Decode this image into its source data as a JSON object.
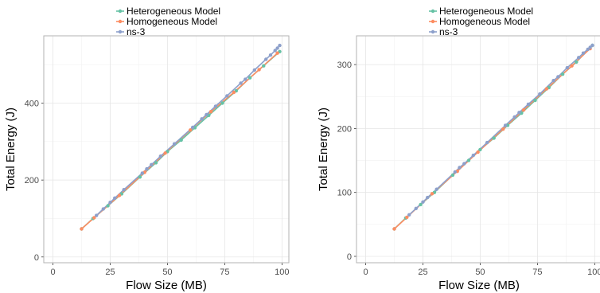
{
  "legend_entries": [
    {
      "name": "Heterogeneous Model",
      "color": "#66c2a5"
    },
    {
      "name": "Homogeneous Model",
      "color": "#fc8d62"
    },
    {
      "name": "ns-3",
      "color": "#8da0cb"
    }
  ],
  "chart_data": [
    {
      "type": "line",
      "title": "",
      "xlabel": "Flow Size (MB)",
      "ylabel": "Total Energy (J)",
      "xlim": [
        -4,
        103
      ],
      "ylim": [
        -15,
        575
      ],
      "xticks": [
        0,
        25,
        50,
        75,
        100
      ],
      "yticks": [
        0,
        200,
        400
      ],
      "grid": true,
      "legend_position": "top",
      "series": [
        {
          "name": "Heterogeneous Model",
          "color": "#66c2a5",
          "x": [
            12.5,
            17.5,
            24,
            30,
            38,
            45,
            50,
            56,
            62,
            68,
            74,
            80,
            86,
            92,
            99
          ],
          "y": [
            73,
            100,
            133,
            164,
            208,
            245,
            274,
            304,
            336,
            368,
            400,
            432,
            466,
            497,
            534
          ]
        },
        {
          "name": "Homogeneous Model",
          "color": "#fc8d62",
          "x": [
            12.5,
            18,
            29,
            40,
            49,
            60,
            69,
            79,
            90,
            98
          ],
          "y": [
            73,
            102,
            160,
            220,
            270,
            330,
            378,
            428,
            487,
            530
          ]
        },
        {
          "name": "ns-3",
          "color": "#8da0cb",
          "x": [
            19,
            22,
            25,
            27,
            31,
            39,
            41,
            43,
            47,
            53,
            61,
            65,
            67,
            71,
            76,
            82,
            84,
            88,
            93,
            95,
            97,
            98,
            99
          ],
          "y": [
            108,
            125,
            142,
            153,
            175,
            218,
            229,
            240,
            262,
            294,
            337,
            359,
            370,
            392,
            419,
            452,
            462,
            486,
            514,
            525,
            537,
            543,
            550
          ]
        }
      ]
    },
    {
      "type": "line",
      "title": "",
      "xlabel": "Flow Size (MB)",
      "ylabel": "Total Energy (J)",
      "xlim": [
        -4,
        103
      ],
      "ylim": [
        -10,
        345
      ],
      "xticks": [
        0,
        25,
        50,
        75,
        100
      ],
      "yticks": [
        0,
        100,
        200,
        300
      ],
      "grid": true,
      "legend_position": "top",
      "series": [
        {
          "name": "Heterogeneous Model",
          "color": "#66c2a5",
          "x": [
            12.5,
            17.5,
            24,
            30,
            38,
            45,
            50,
            56,
            62,
            68,
            74,
            80,
            86,
            92,
            99
          ],
          "y": [
            43,
            60,
            81,
            100,
            127,
            150,
            167,
            185,
            205,
            224,
            244,
            264,
            285,
            304,
            330
          ]
        },
        {
          "name": "Homogeneous Model",
          "color": "#fc8d62",
          "x": [
            12.5,
            18,
            29,
            40,
            49,
            60,
            69,
            79,
            90,
            98
          ],
          "y": [
            43,
            61,
            98,
            133,
            163,
            199,
            229,
            262,
            298,
            325
          ]
        },
        {
          "name": "ns-3",
          "color": "#8da0cb",
          "x": [
            19,
            22,
            25,
            27,
            31,
            39,
            41,
            43,
            47,
            53,
            61,
            65,
            67,
            71,
            76,
            82,
            84,
            88,
            93,
            95,
            97,
            98,
            99
          ],
          "y": [
            65,
            75,
            85,
            92,
            105,
            132,
            139,
            145,
            158,
            178,
            205,
            218,
            225,
            238,
            254,
            275,
            281,
            295,
            311,
            318,
            324,
            327,
            330
          ]
        }
      ]
    }
  ]
}
